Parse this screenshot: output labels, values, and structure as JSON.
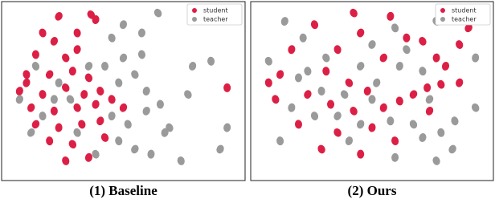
{
  "chart_data": [
    {
      "type": "scatter",
      "title": "(1) Baseline",
      "xlim": [
        0,
        100
      ],
      "ylim": [
        0,
        100
      ],
      "legend": "upper right",
      "series": [
        {
          "name": "student",
          "color": "#dc1f45",
          "x": [
            36,
            38,
            15,
            20,
            12,
            25,
            30,
            8,
            18,
            28,
            35,
            5,
            15,
            25,
            33,
            40,
            10,
            20,
            30,
            38,
            45,
            12,
            22,
            32,
            40,
            18,
            28,
            35,
            25,
            50,
            95,
            42,
            8,
            30,
            22
          ],
          "values": [
            96,
            93,
            85,
            80,
            72,
            70,
            75,
            60,
            60,
            62,
            58,
            50,
            48,
            52,
            48,
            50,
            40,
            38,
            40,
            42,
            45,
            30,
            28,
            30,
            32,
            20,
            18,
            10,
            8,
            40,
            52,
            22,
            55,
            85,
            95
          ]
        },
        {
          "name": "teacher",
          "color": "#9a9a9a",
          "x": [
            65,
            58,
            45,
            50,
            42,
            55,
            60,
            48,
            35,
            22,
            12,
            5,
            15,
            27,
            45,
            52,
            60,
            66,
            70,
            68,
            48,
            55,
            62,
            38,
            80,
            88,
            78,
            95,
            75,
            92,
            20,
            30,
            50,
            58,
            10
          ],
          "values": [
            97,
            85,
            82,
            70,
            65,
            60,
            50,
            55,
            65,
            55,
            65,
            45,
            35,
            45,
            35,
            30,
            38,
            42,
            28,
            25,
            20,
            15,
            12,
            12,
            65,
            68,
            48,
            28,
            8,
            15,
            45,
            25,
            90,
            72,
            25
          ]
        }
      ]
    },
    {
      "type": "scatter",
      "title": "(2) Ours",
      "xlim": [
        0,
        100
      ],
      "ylim": [
        0,
        100
      ],
      "legend": "upper right",
      "series": [
        {
          "name": "student",
          "color": "#dc1f45",
          "x": [
            42,
            58,
            25,
            45,
            65,
            72,
            15,
            35,
            55,
            78,
            88,
            10,
            30,
            40,
            48,
            8,
            22,
            32,
            42,
            55,
            62,
            68,
            74,
            80,
            88,
            18,
            35,
            50,
            60,
            75,
            45,
            28,
            82,
            5,
            92
          ],
          "values": [
            97,
            95,
            90,
            85,
            82,
            80,
            75,
            75,
            70,
            70,
            78,
            60,
            62,
            55,
            50,
            45,
            48,
            42,
            38,
            40,
            44,
            48,
            52,
            54,
            55,
            30,
            25,
            28,
            20,
            38,
            12,
            15,
            65,
            55,
            88
          ]
        },
        {
          "name": "teacher",
          "color": "#9a9a9a",
          "x": [
            78,
            90,
            60,
            50,
            20,
            30,
            62,
            72,
            45,
            18,
            5,
            52,
            28,
            38,
            15,
            25,
            45,
            58,
            68,
            72,
            80,
            85,
            60,
            78,
            40,
            10,
            95,
            95,
            86,
            35,
            50,
            65,
            12,
            22,
            75
          ],
          "values": [
            92,
            95,
            88,
            78,
            82,
            70,
            65,
            62,
            65,
            58,
            68,
            55,
            50,
            48,
            40,
            35,
            30,
            32,
            30,
            22,
            25,
            15,
            10,
            8,
            20,
            20,
            40,
            70,
            32,
            35,
            45,
            75,
            92,
            62,
            45
          ]
        }
      ]
    }
  ]
}
